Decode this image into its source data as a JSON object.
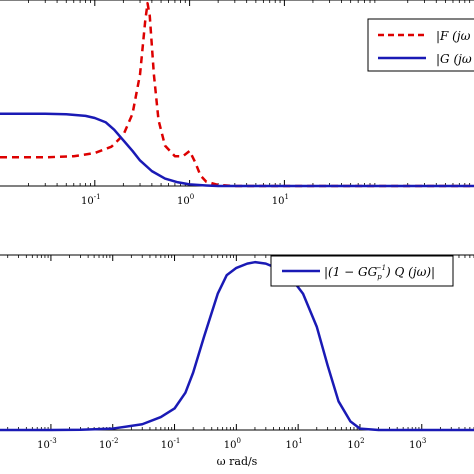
{
  "chart_data": [
    {
      "type": "line",
      "x_scale": "log",
      "xlim": [
        0.01,
        1000
      ],
      "ylim": [
        0,
        1.75
      ],
      "x_ticks": [
        {
          "value": 0.1,
          "label": "10",
          "exp": "-1"
        },
        {
          "value": 1,
          "label": "10",
          "exp": "0"
        },
        {
          "value": 10,
          "label": "10",
          "exp": "1"
        }
      ],
      "legend_position": "top-right",
      "grid": false,
      "series": [
        {
          "name": "|F (jω",
          "color": "#dd0000",
          "dash": true,
          "points": [
            [
              0.01,
              0.27
            ],
            [
              0.03,
              0.27
            ],
            [
              0.06,
              0.28
            ],
            [
              0.1,
              0.31
            ],
            [
              0.15,
              0.37
            ],
            [
              0.2,
              0.48
            ],
            [
              0.25,
              0.68
            ],
            [
              0.3,
              1.05
            ],
            [
              0.34,
              1.55
            ],
            [
              0.36,
              1.72
            ],
            [
              0.38,
              1.6
            ],
            [
              0.42,
              1.05
            ],
            [
              0.47,
              0.62
            ],
            [
              0.55,
              0.38
            ],
            [
              0.7,
              0.28
            ],
            [
              0.85,
              0.28
            ],
            [
              1.0,
              0.33
            ],
            [
              1.15,
              0.22
            ],
            [
              1.3,
              0.1
            ],
            [
              1.5,
              0.04
            ],
            [
              2.0,
              0.01
            ],
            [
              3.0,
              0.0
            ],
            [
              10,
              0.0
            ],
            [
              1000,
              0.0
            ]
          ]
        },
        {
          "name": "|G (jω",
          "color": "#1a1ab5",
          "dash": false,
          "points": [
            [
              0.01,
              0.68
            ],
            [
              0.03,
              0.68
            ],
            [
              0.05,
              0.675
            ],
            [
              0.08,
              0.66
            ],
            [
              0.1,
              0.64
            ],
            [
              0.13,
              0.6
            ],
            [
              0.16,
              0.53
            ],
            [
              0.2,
              0.43
            ],
            [
              0.25,
              0.33
            ],
            [
              0.3,
              0.24
            ],
            [
              0.4,
              0.14
            ],
            [
              0.55,
              0.07
            ],
            [
              0.75,
              0.035
            ],
            [
              1.0,
              0.015
            ],
            [
              1.5,
              0.005
            ],
            [
              2.0,
              0.0
            ],
            [
              10,
              0.0
            ],
            [
              1000,
              0.0
            ]
          ]
        }
      ]
    },
    {
      "type": "line",
      "x_scale": "log",
      "x_label": "ω  rad/s",
      "xlim": [
        0.00015,
        7000
      ],
      "ylim": [
        0,
        1.22
      ],
      "x_ticks": [
        {
          "value": 0.001,
          "label": "10",
          "exp": "-3"
        },
        {
          "value": 0.01,
          "label": "10",
          "exp": "-2"
        },
        {
          "value": 0.1,
          "label": "10",
          "exp": "-1"
        },
        {
          "value": 1,
          "label": "10",
          "exp": "0"
        },
        {
          "value": 10,
          "label": "10",
          "exp": "1"
        },
        {
          "value": 100,
          "label": "10",
          "exp": "2"
        },
        {
          "value": 1000,
          "label": "10",
          "exp": "3"
        }
      ],
      "legend_position": "top-right",
      "grid": false,
      "series": [
        {
          "name": "|(1 − GG_p^{-1}) Q (jω)|",
          "color": "#1a1ab5",
          "dash": false,
          "points": [
            [
              0.00015,
              0.0
            ],
            [
              0.001,
              0.0
            ],
            [
              0.003,
              0.002
            ],
            [
              0.01,
              0.01
            ],
            [
              0.03,
              0.04
            ],
            [
              0.06,
              0.09
            ],
            [
              0.1,
              0.15
            ],
            [
              0.15,
              0.26
            ],
            [
              0.2,
              0.4
            ],
            [
              0.3,
              0.65
            ],
            [
              0.5,
              0.95
            ],
            [
              0.7,
              1.08
            ],
            [
              1.0,
              1.13
            ],
            [
              1.5,
              1.16
            ],
            [
              2.0,
              1.17
            ],
            [
              3.0,
              1.16
            ],
            [
              5.0,
              1.12
            ],
            [
              8.0,
              1.05
            ],
            [
              12,
              0.95
            ],
            [
              20,
              0.72
            ],
            [
              30,
              0.45
            ],
            [
              45,
              0.2
            ],
            [
              70,
              0.06
            ],
            [
              100,
              0.01
            ],
            [
              200,
              0.0
            ],
            [
              7000,
              0.0
            ]
          ]
        }
      ]
    }
  ],
  "legend_bottom": {
    "parts": [
      "|(1 − GG",
      "p",
      "−1",
      ") Q (jω)|"
    ]
  }
}
